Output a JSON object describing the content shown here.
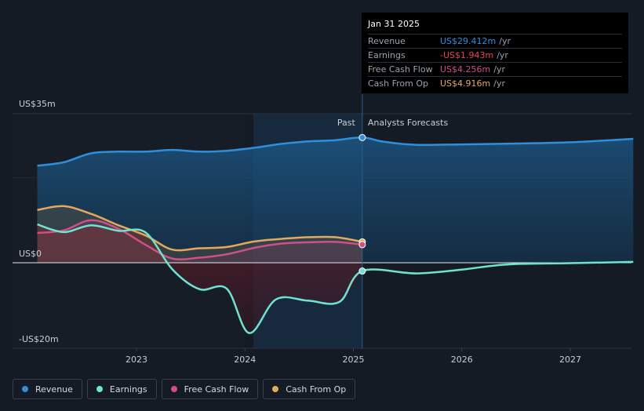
{
  "chart_data": {
    "type": "area",
    "y_unit_labels": {
      "top": "US$35m",
      "zero": "US$0",
      "bottom": "-US$20m"
    },
    "ylim": [
      -20,
      35
    ],
    "x_ticks": [
      "2023",
      "2024",
      "2025",
      "2026",
      "2027"
    ],
    "past_label": "Past",
    "forecast_label": "Analysts Forecasts",
    "split_date": "2025-01-31",
    "series": [
      {
        "name": "Revenue",
        "color": "#2f8fdc",
        "fill": "#1a4e77",
        "points": [
          [
            "2022-02-01",
            22.8
          ],
          [
            "2022-05-01",
            23.6
          ],
          [
            "2022-08-01",
            25.7
          ],
          [
            "2022-11-01",
            26.1
          ],
          [
            "2023-02-01",
            26.1
          ],
          [
            "2023-05-01",
            26.5
          ],
          [
            "2023-08-01",
            26.1
          ],
          [
            "2023-11-01",
            26.3
          ],
          [
            "2024-02-01",
            27.0
          ],
          [
            "2024-05-01",
            27.9
          ],
          [
            "2024-08-01",
            28.5
          ],
          [
            "2024-11-01",
            28.8
          ],
          [
            "2025-01-31",
            29.412
          ],
          [
            "2025-04-15",
            28.4
          ],
          [
            "2025-08-01",
            27.7
          ],
          [
            "2026-01-01",
            27.8
          ],
          [
            "2026-07-01",
            28.0
          ],
          [
            "2027-01-01",
            28.3
          ],
          [
            "2027-08-01",
            29.1
          ]
        ]
      },
      {
        "name": "Earnings",
        "color": "#6fe3cf",
        "points": [
          [
            "2022-02-01",
            9.0
          ],
          [
            "2022-05-01",
            7.2
          ],
          [
            "2022-08-01",
            8.8
          ],
          [
            "2022-11-01",
            7.5
          ],
          [
            "2023-02-01",
            7.1
          ],
          [
            "2023-05-01",
            -1.5
          ],
          [
            "2023-08-01",
            -6.2
          ],
          [
            "2023-11-01",
            -6.1
          ],
          [
            "2024-01-15",
            -16.5
          ],
          [
            "2024-04-15",
            -8.6
          ],
          [
            "2024-08-01",
            -8.9
          ],
          [
            "2024-11-15",
            -9.2
          ],
          [
            "2025-01-31",
            -1.943
          ],
          [
            "2025-08-01",
            -2.5
          ],
          [
            "2026-01-01",
            -1.6
          ],
          [
            "2026-06-01",
            -0.4
          ],
          [
            "2027-01-01",
            -0.1
          ],
          [
            "2027-08-01",
            0.2
          ]
        ]
      },
      {
        "name": "Free Cash Flow",
        "color": "#cf4f87",
        "points": [
          [
            "2022-02-01",
            7.0
          ],
          [
            "2022-05-01",
            7.6
          ],
          [
            "2022-08-01",
            10.0
          ],
          [
            "2022-11-01",
            8.0
          ],
          [
            "2023-02-01",
            4.2
          ],
          [
            "2023-05-01",
            1.0
          ],
          [
            "2023-08-01",
            1.2
          ],
          [
            "2023-11-01",
            2.0
          ],
          [
            "2024-02-01",
            3.5
          ],
          [
            "2024-05-01",
            4.5
          ],
          [
            "2024-08-01",
            4.8
          ],
          [
            "2024-11-01",
            4.9
          ],
          [
            "2025-01-31",
            4.256
          ]
        ]
      },
      {
        "name": "Cash From Op",
        "color": "#e4a95e",
        "points": [
          [
            "2022-02-01",
            12.4
          ],
          [
            "2022-05-01",
            13.3
          ],
          [
            "2022-08-01",
            11.5
          ],
          [
            "2022-11-01",
            8.8
          ],
          [
            "2023-02-01",
            6.4
          ],
          [
            "2023-05-01",
            3.1
          ],
          [
            "2023-08-01",
            3.4
          ],
          [
            "2023-11-01",
            3.7
          ],
          [
            "2024-02-01",
            5.0
          ],
          [
            "2024-05-01",
            5.6
          ],
          [
            "2024-08-01",
            6.0
          ],
          [
            "2024-11-01",
            6.0
          ],
          [
            "2025-01-31",
            4.916
          ]
        ]
      }
    ]
  },
  "tooltip": {
    "date": "Jan 31 2025",
    "rows": [
      {
        "label": "Revenue",
        "value": "US$29.412m",
        "unit": "/yr",
        "color": "#2f8fdc"
      },
      {
        "label": "Earnings",
        "value": "-US$1.943m",
        "unit": "/yr",
        "color": "#e8474f"
      },
      {
        "label": "Free Cash Flow",
        "value": "US$4.256m",
        "unit": "/yr",
        "color": "#cf4f87"
      },
      {
        "label": "Cash From Op",
        "value": "US$4.916m",
        "unit": "/yr",
        "color": "#e4a95e"
      }
    ]
  },
  "legend": [
    {
      "label": "Revenue",
      "color": "#2f8fdc"
    },
    {
      "label": "Earnings",
      "color": "#6fe3cf"
    },
    {
      "label": "Free Cash Flow",
      "color": "#cf4f87"
    },
    {
      "label": "Cash From Op",
      "color": "#e4a95e"
    }
  ]
}
